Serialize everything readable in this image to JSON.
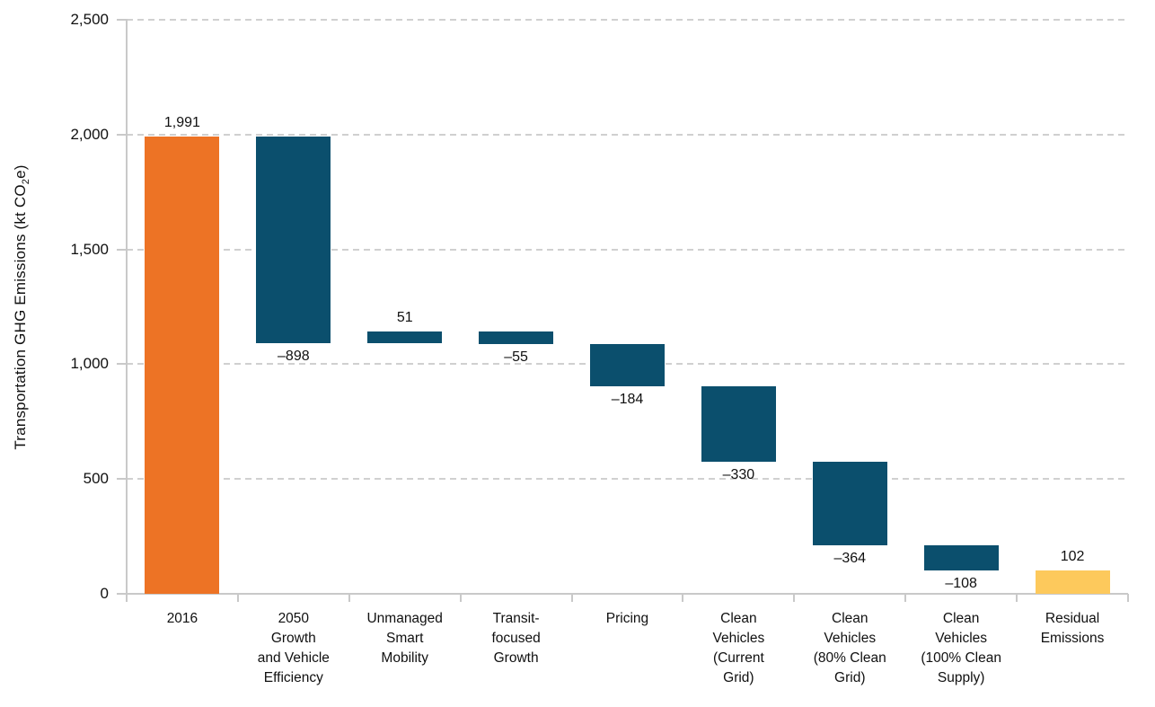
{
  "chart_data": {
    "type": "waterfall",
    "title": "",
    "ylabel": "Transportation GHG Emissions (kt CO2e)",
    "ylabel_parts": {
      "prefix": "Transportation GHG Emissions (kt CO",
      "sub": "2",
      "suffix": "e)"
    },
    "ylim": [
      0,
      2500
    ],
    "ytick_interval": 500,
    "yticks": [
      {
        "value": 0,
        "label": "0"
      },
      {
        "value": 500,
        "label": "500"
      },
      {
        "value": 1000,
        "label": "1,000"
      },
      {
        "value": 1500,
        "label": "1,500"
      },
      {
        "value": 2000,
        "label": "2,000"
      },
      {
        "value": 2500,
        "label": "2,500"
      }
    ],
    "grid": "horizontal-dashed",
    "legend": "none",
    "categories": [
      "2016",
      "2050 Growth and Vehicle Efficiency",
      "Unmanaged Smart Mobility",
      "Transit-focused Growth",
      "Pricing",
      "Clean Vehicles (Current Grid)",
      "Clean Vehicles (80% Clean Grid)",
      "Clean Vehicles (100% Clean Supply)",
      "Residual Emissions"
    ],
    "bars": [
      {
        "category": "2016",
        "category_lines": "2016",
        "value": 1991,
        "display": "1,991",
        "kind": "absolute",
        "role": "start"
      },
      {
        "category": "2050 Growth and Vehicle Efficiency",
        "category_lines": "2050\nGrowth\nand Vehicle\nEfficiency",
        "value": -898,
        "display": "–898",
        "kind": "delta",
        "role": "delta"
      },
      {
        "category": "Unmanaged Smart Mobility",
        "category_lines": "Unmanaged\nSmart\nMobility",
        "value": 51,
        "display": "51",
        "kind": "delta",
        "role": "delta"
      },
      {
        "category": "Transit-focused Growth",
        "category_lines": "Transit-\nfocused\nGrowth",
        "value": -55,
        "display": "–55",
        "kind": "delta",
        "role": "delta"
      },
      {
        "category": "Pricing",
        "category_lines": "Pricing",
        "value": -184,
        "display": "–184",
        "kind": "delta",
        "role": "delta"
      },
      {
        "category": "Clean Vehicles (Current Grid)",
        "category_lines": "Clean\nVehicles\n(Current\nGrid)",
        "value": -330,
        "display": "–330",
        "kind": "delta",
        "role": "delta"
      },
      {
        "category": "Clean Vehicles (80% Clean Grid)",
        "category_lines": "Clean\nVehicles\n(80% Clean\nGrid)",
        "value": -364,
        "display": "–364",
        "kind": "delta",
        "role": "delta"
      },
      {
        "category": "Clean Vehicles (100% Clean Supply)",
        "category_lines": "Clean\nVehicles\n(100% Clean\nSupply)",
        "value": -108,
        "display": "–108",
        "kind": "delta",
        "role": "delta"
      },
      {
        "category": "Residual Emissions",
        "category_lines": "Residual\nEmissions",
        "value": 102,
        "display": "102",
        "kind": "absolute",
        "role": "end"
      }
    ],
    "colors": {
      "start_bar": "#ED7325",
      "delta_bar": "#0B4F6D",
      "end_bar": "#FDC95C",
      "gridline": "#D0D0D0",
      "axis": "#C9C9C9",
      "text": "#101010"
    }
  }
}
